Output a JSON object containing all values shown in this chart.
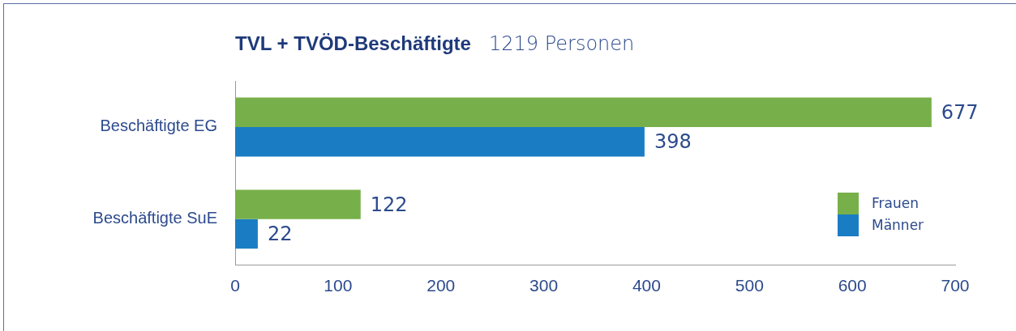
{
  "chart_data": {
    "type": "bar",
    "orientation": "horizontal",
    "title": "TVL + TVÖD-Beschäftigte",
    "subtitle": "1219 Personen",
    "categories": [
      "Beschäftigte EG",
      "Beschäftigte SuE"
    ],
    "series": [
      {
        "name": "Frauen",
        "color": "#77b04a",
        "values": [
          677,
          122
        ]
      },
      {
        "name": "Männer",
        "color": "#1a7dc4",
        "values": [
          398,
          22
        ]
      }
    ],
    "xlim": [
      0,
      700
    ],
    "xticks": [
      0,
      100,
      200,
      300,
      400,
      500,
      600,
      700
    ],
    "grid": false,
    "legend": "bottom right",
    "data_labels": true
  }
}
